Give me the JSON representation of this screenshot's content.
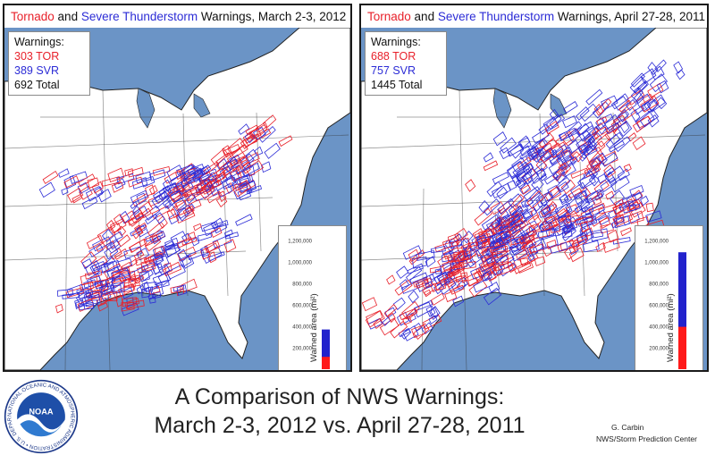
{
  "panels": [
    {
      "title_tor": "Tornado",
      "title_and": " and ",
      "title_svr": "Severe Thunderstorm",
      "title_rest": " Warnings, March 2-3, 2012",
      "legend_heading": "Warnings:",
      "legend_tor": "303 TOR",
      "legend_svr": "389 SVR",
      "legend_total": "692 Total",
      "warned_area": {
        "ylabel": "Warned area (mi²)",
        "ticks": [
          "1,200,000",
          "1,000,000",
          "800,000",
          "600,000",
          "400,000",
          "200,000"
        ],
        "ylim": [
          0,
          1200000
        ],
        "tor_area": 115000,
        "total_area": 370000
      }
    },
    {
      "title_tor": "Tornado",
      "title_and": " and ",
      "title_svr": "Severe Thunderstorm",
      "title_rest": " Warnings, April 27-28, 2011",
      "legend_heading": "Warnings:",
      "legend_tor": "688 TOR",
      "legend_svr": "757 SVR",
      "legend_total": "1445 Total",
      "warned_area": {
        "ylabel": "Warned area (mi²)",
        "ticks": [
          "1,200,000",
          "1,000,000",
          "800,000",
          "600,000",
          "400,000",
          "200,000"
        ],
        "ylim": [
          0,
          1200000
        ],
        "tor_area": 395000,
        "total_area": 1090000
      }
    }
  ],
  "footer": {
    "title_line1": "A Comparison of NWS Warnings:",
    "title_line2": "March 2-3, 2012 vs. April 27-28, 2011",
    "credit_author": "G. Carbin",
    "credit_org": "NWS/Storm Prediction  Center"
  },
  "logo": {
    "text_center": "NOAA",
    "ring_text": "NATIONAL OCEANIC AND ATMOSPHERIC ADMINISTRATION • U.S. DEPARTMENT OF COMMERCE •"
  },
  "colors": {
    "tor": "#e8202a",
    "svr": "#2c2cd6",
    "water": "#6b94c6",
    "land": "#ffffff"
  }
}
